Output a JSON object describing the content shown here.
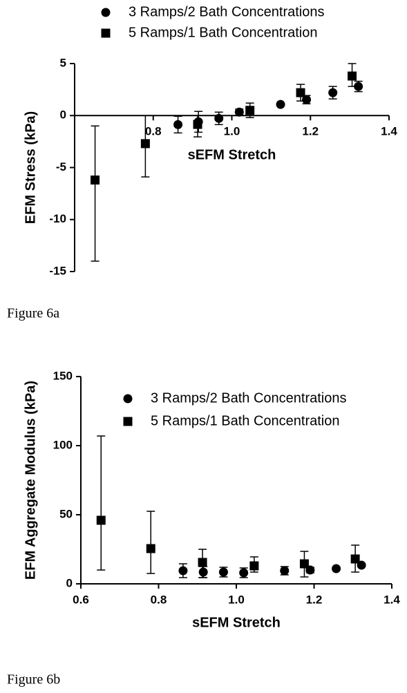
{
  "chart_data": [
    {
      "type": "scatter",
      "caption": "Figure 6a",
      "x_label": "sEFM Stretch",
      "y_label": "EFM Stress (kPa)",
      "xlim": [
        0.6,
        1.4
      ],
      "ylim": [
        -15,
        5
      ],
      "xticks": [
        0.8,
        {
          "value": 1.0,
          "label": "1.0"
        },
        1.2,
        1.4
      ],
      "yticks": [
        5,
        0,
        -5,
        -10,
        -15
      ],
      "series": [
        {
          "name": "3 Ramps/2 Bath Concentrations",
          "marker": "circle",
          "color": "#000000",
          "x": [
            0.863,
            0.915,
            0.967,
            1.019,
            1.124,
            1.19,
            1.257,
            1.322
          ],
          "values": [
            -0.87,
            -0.6,
            -0.27,
            0.33,
            1.07,
            1.53,
            2.2,
            2.8
          ],
          "error_minus": [
            0.8,
            1.0,
            0.6,
            0.3,
            0.1,
            0.4,
            0.6,
            0.5
          ],
          "error_plus": [
            0.8,
            1.0,
            0.6,
            0.3,
            0.1,
            0.4,
            0.6,
            0.5
          ]
        },
        {
          "name": "5 Ramps/1 Bath Concentration",
          "marker": "square",
          "color": "#000000",
          "x": [
            0.652,
            0.78,
            0.913,
            1.046,
            1.175,
            1.306
          ],
          "values": [
            -6.2,
            -2.7,
            -0.85,
            0.5,
            2.2,
            3.8
          ],
          "error_minus": [
            7.8,
            3.2,
            1.2,
            0.7,
            0.8,
            1.0
          ],
          "error_plus": [
            5.2,
            2.7,
            0.85,
            0.7,
            0.8,
            1.2
          ]
        }
      ]
    },
    {
      "type": "scatter",
      "caption": "Figure 6b",
      "x_label": "sEFM Stretch",
      "y_label": "EFM Aggregate Modulus (kPa)",
      "xlim": [
        0.6,
        1.4
      ],
      "ylim": [
        0,
        150
      ],
      "xticks": [
        0.6,
        0.8,
        {
          "value": 1.0,
          "label": "1.0"
        },
        1.2,
        1.4
      ],
      "yticks": [
        0,
        50,
        100,
        150
      ],
      "series": [
        {
          "name": "3 Ramps/2 Bath Concentrations",
          "marker": "circle",
          "color": "#000000",
          "x": [
            0.863,
            0.915,
            0.967,
            1.019,
            1.124,
            1.19,
            1.257,
            1.322
          ],
          "values": [
            9.5,
            8.5,
            8.5,
            8,
            9.5,
            10,
            11,
            13.5
          ],
          "error_minus": [
            5,
            4,
            3.5,
            3.5,
            3,
            2,
            1,
            1
          ],
          "error_plus": [
            5,
            4,
            3.5,
            3.5,
            3,
            2,
            1,
            1
          ]
        },
        {
          "name": "5 Ramps/1 Bath Concentration",
          "marker": "square",
          "color": "#000000",
          "x": [
            0.652,
            0.78,
            0.913,
            1.046,
            1.175,
            1.306
          ],
          "values": [
            46,
            25.5,
            15.5,
            13,
            14.5,
            18
          ],
          "error_minus": [
            36,
            18,
            11,
            4.5,
            9.5,
            9.5
          ],
          "error_plus": [
            61,
            27,
            9.5,
            6.5,
            9,
            10
          ]
        }
      ]
    }
  ]
}
